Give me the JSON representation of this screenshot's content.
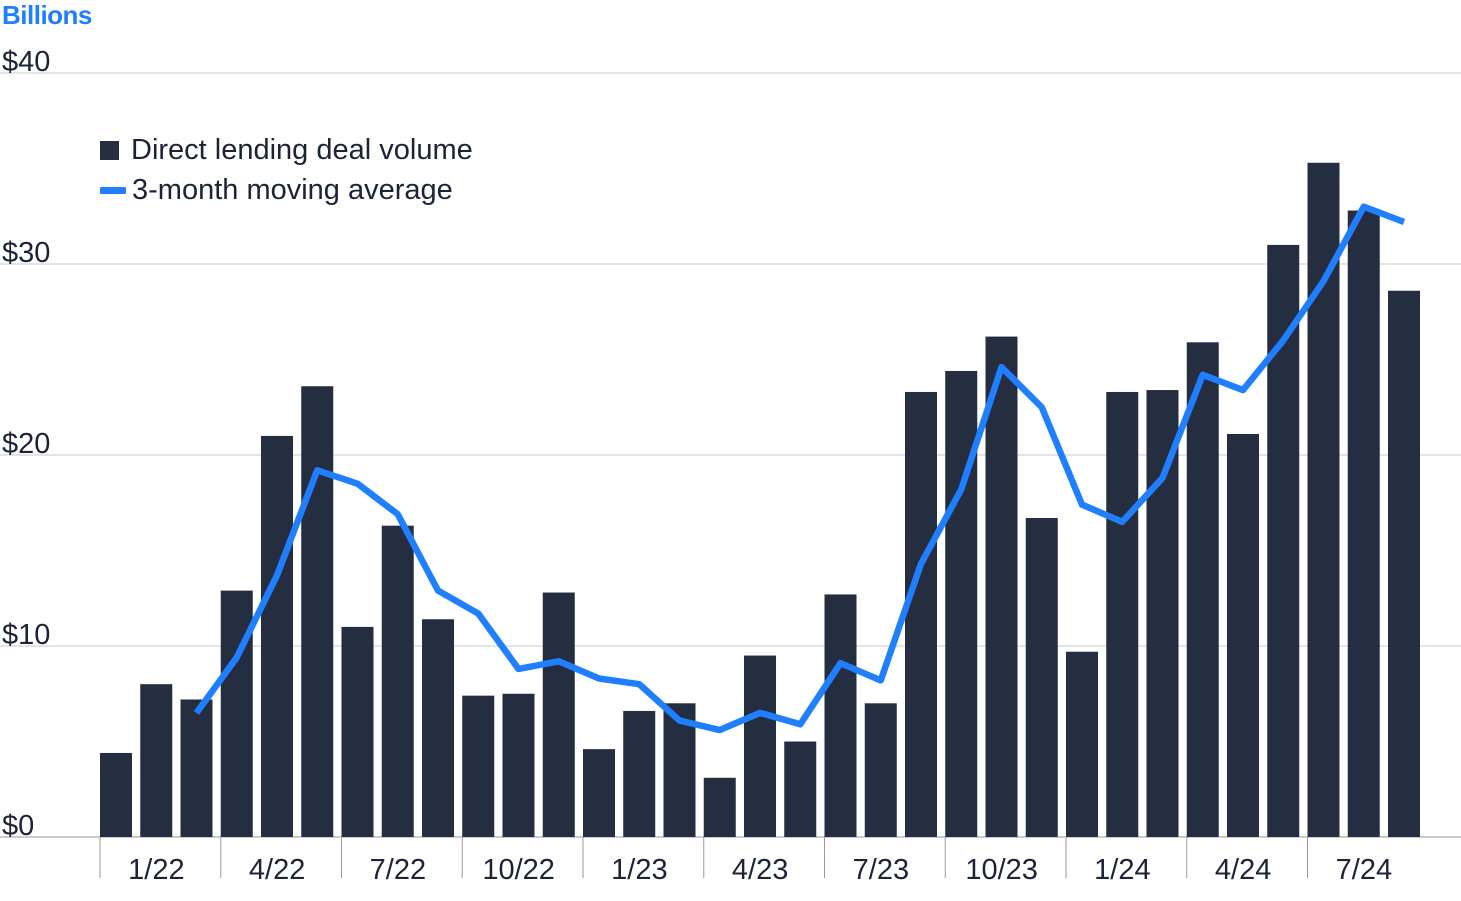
{
  "chart_data": {
    "type": "bar",
    "ylabel": "Billions",
    "ylim": [
      0,
      40
    ],
    "yticks": [
      "$0",
      "$10",
      "$20",
      "$30",
      "$40"
    ],
    "ytick_values": [
      0,
      10,
      20,
      30,
      40
    ],
    "grid": true,
    "legend_position": "top-left",
    "categories": [
      "1/22",
      "2/22",
      "3/22",
      "4/22",
      "5/22",
      "6/22",
      "7/22",
      "8/22",
      "9/22",
      "10/22",
      "11/22",
      "12/22",
      "1/23",
      "2/23",
      "3/23",
      "4/23",
      "5/23",
      "6/23",
      "7/23",
      "8/23",
      "9/23",
      "10/23",
      "11/23",
      "12/23",
      "1/24",
      "2/24",
      "3/24",
      "4/24",
      "5/24",
      "6/24",
      "7/24",
      "8/24",
      "9/24"
    ],
    "xtick_labels": [
      "1/22",
      "4/22",
      "7/22",
      "10/22",
      "1/23",
      "4/23",
      "7/23",
      "10/23",
      "1/24",
      "4/24",
      "7/24"
    ],
    "series": [
      {
        "name": "Direct lending deal volume",
        "kind": "bar",
        "color": "#252d40",
        "values": [
          4.4,
          8.0,
          7.2,
          12.9,
          21.0,
          23.6,
          11.0,
          16.3,
          11.4,
          7.4,
          7.5,
          12.8,
          4.6,
          6.6,
          7.0,
          3.1,
          9.5,
          5.0,
          12.7,
          7.0,
          23.3,
          24.4,
          26.2,
          16.7,
          9.7,
          23.3,
          23.4,
          25.9,
          21.1,
          31.0,
          35.3,
          32.8,
          28.6
        ]
      },
      {
        "name": "3-month moving average",
        "kind": "line",
        "color": "#1f7fff",
        "values": [
          null,
          null,
          6.5,
          9.4,
          13.7,
          19.2,
          18.5,
          16.9,
          12.9,
          11.7,
          8.8,
          9.2,
          8.3,
          8.0,
          6.1,
          5.6,
          6.5,
          5.9,
          9.1,
          8.2,
          14.3,
          18.2,
          24.6,
          22.5,
          17.4,
          16.5,
          18.8,
          24.2,
          23.4,
          26.0,
          29.1,
          33.0,
          32.2
        ]
      }
    ]
  },
  "colors": {
    "bar": "#252d40",
    "line": "#1f7fff",
    "unit_label": "#1f7fff",
    "grid": "#c9c9c9",
    "text": "#1b2436"
  }
}
